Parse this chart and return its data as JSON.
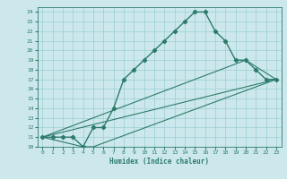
{
  "xlabel": "Humidex (Indice chaleur)",
  "bg_color": "#cce8ec",
  "grid_color": "#99cdd4",
  "line_color": "#2d7b6b",
  "xlim": [
    -0.5,
    23.5
  ],
  "ylim": [
    10,
    24.5
  ],
  "xticks": [
    0,
    1,
    2,
    3,
    4,
    5,
    6,
    7,
    8,
    9,
    10,
    11,
    12,
    13,
    14,
    15,
    16,
    17,
    18,
    19,
    20,
    21,
    22,
    23
  ],
  "yticks": [
    10,
    11,
    12,
    13,
    14,
    15,
    16,
    17,
    18,
    19,
    20,
    21,
    22,
    23,
    24
  ],
  "curve_x": [
    0,
    1,
    2,
    3,
    4,
    5,
    6,
    7,
    8,
    9,
    10,
    11,
    12,
    13,
    14,
    15,
    16,
    17,
    18,
    19,
    20,
    21,
    22,
    23
  ],
  "curve_y": [
    11,
    11,
    11,
    11,
    10,
    12,
    12,
    14,
    17,
    18,
    19,
    20,
    21,
    22,
    23,
    24,
    24,
    22,
    21,
    19,
    19,
    18,
    17,
    17
  ],
  "line1_x": [
    0,
    23
  ],
  "line1_y": [
    11,
    17
  ],
  "line2_x": [
    0,
    20,
    23
  ],
  "line2_y": [
    11,
    19,
    17
  ],
  "line3_x": [
    0,
    4,
    5,
    23
  ],
  "line3_y": [
    11,
    10,
    10,
    17
  ]
}
